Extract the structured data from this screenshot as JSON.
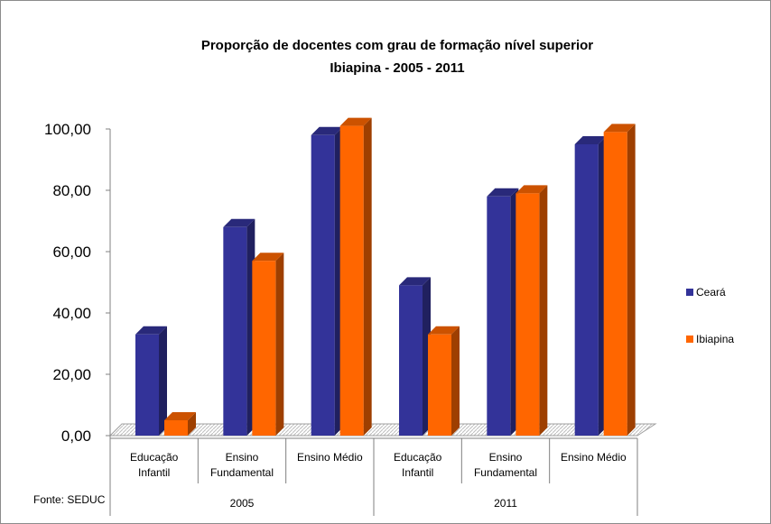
{
  "chart_data": {
    "type": "bar",
    "title": "Proporção de docentes com grau de formação nível superior",
    "subtitle": "Ibiapina - 2005 - 2011",
    "groups": [
      {
        "label": "2005",
        "categories": [
          [
            "Educação",
            "Infantil"
          ],
          [
            "Ensino",
            "Fundamental"
          ],
          [
            "Ensino Médio"
          ]
        ]
      },
      {
        "label": "2011",
        "categories": [
          [
            "Educação",
            "Infantil"
          ],
          [
            "Ensino",
            "Fundamental"
          ],
          [
            "Ensino Médio"
          ]
        ]
      }
    ],
    "series": [
      {
        "name": "Ceará",
        "color": "#333399",
        "values": [
          33,
          68,
          98,
          49,
          78,
          95
        ]
      },
      {
        "name": "Ibiapina",
        "color": "#ff6600",
        "values": [
          5,
          57,
          101,
          33,
          79,
          99
        ]
      }
    ],
    "yticks": [
      "0,00",
      "20,00",
      "40,00",
      "60,00",
      "80,00",
      "100,00"
    ],
    "ylim": [
      0,
      100
    ],
    "legend_position": "right",
    "source": "Fonte: SEDUC"
  }
}
